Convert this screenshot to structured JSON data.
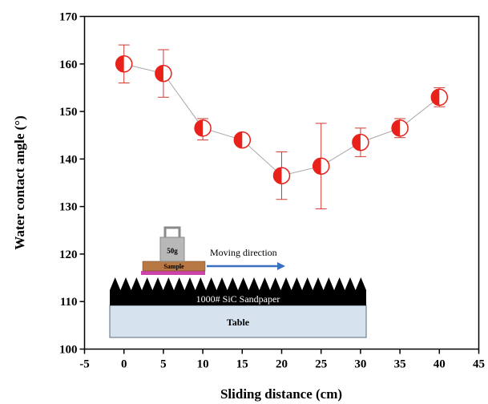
{
  "chart_data": {
    "type": "scatter",
    "xlabel": "Sliding distance (cm)",
    "ylabel": "Water contact angle (°)",
    "xlim": [
      -5,
      45
    ],
    "ylim": [
      100,
      170
    ],
    "xticks": [
      -5,
      0,
      5,
      10,
      15,
      20,
      25,
      30,
      35,
      40,
      45
    ],
    "yticks": [
      100,
      110,
      120,
      130,
      140,
      150,
      160,
      170
    ],
    "grid": false,
    "series": [
      {
        "x": [
          0,
          5,
          10,
          15,
          20,
          25,
          30,
          35,
          40
        ],
        "y": [
          160,
          158,
          146.5,
          144,
          136.5,
          138.5,
          143.5,
          146.5,
          153
        ],
        "err_low": [
          4,
          5,
          2.5,
          1,
          5,
          9,
          3,
          2,
          2
        ],
        "err_high": [
          4,
          5,
          2,
          1,
          5,
          9,
          3,
          2,
          2
        ]
      }
    ],
    "colors": {
      "marker": "#e8221b",
      "line": "#a6a6a6",
      "sandpaper": "#000000",
      "table": "#d6e3ee",
      "sample": "#b87844",
      "substrate": "#cc44aa",
      "arrow": "#3b6fbf",
      "weight": "#b8b8b8"
    },
    "inset": {
      "weight_label": "50g",
      "sample_label": "Sample",
      "arrow_label": "Moving direction",
      "sandpaper_label": "1000# SiC Sandpaper",
      "table_label": "Table"
    }
  }
}
